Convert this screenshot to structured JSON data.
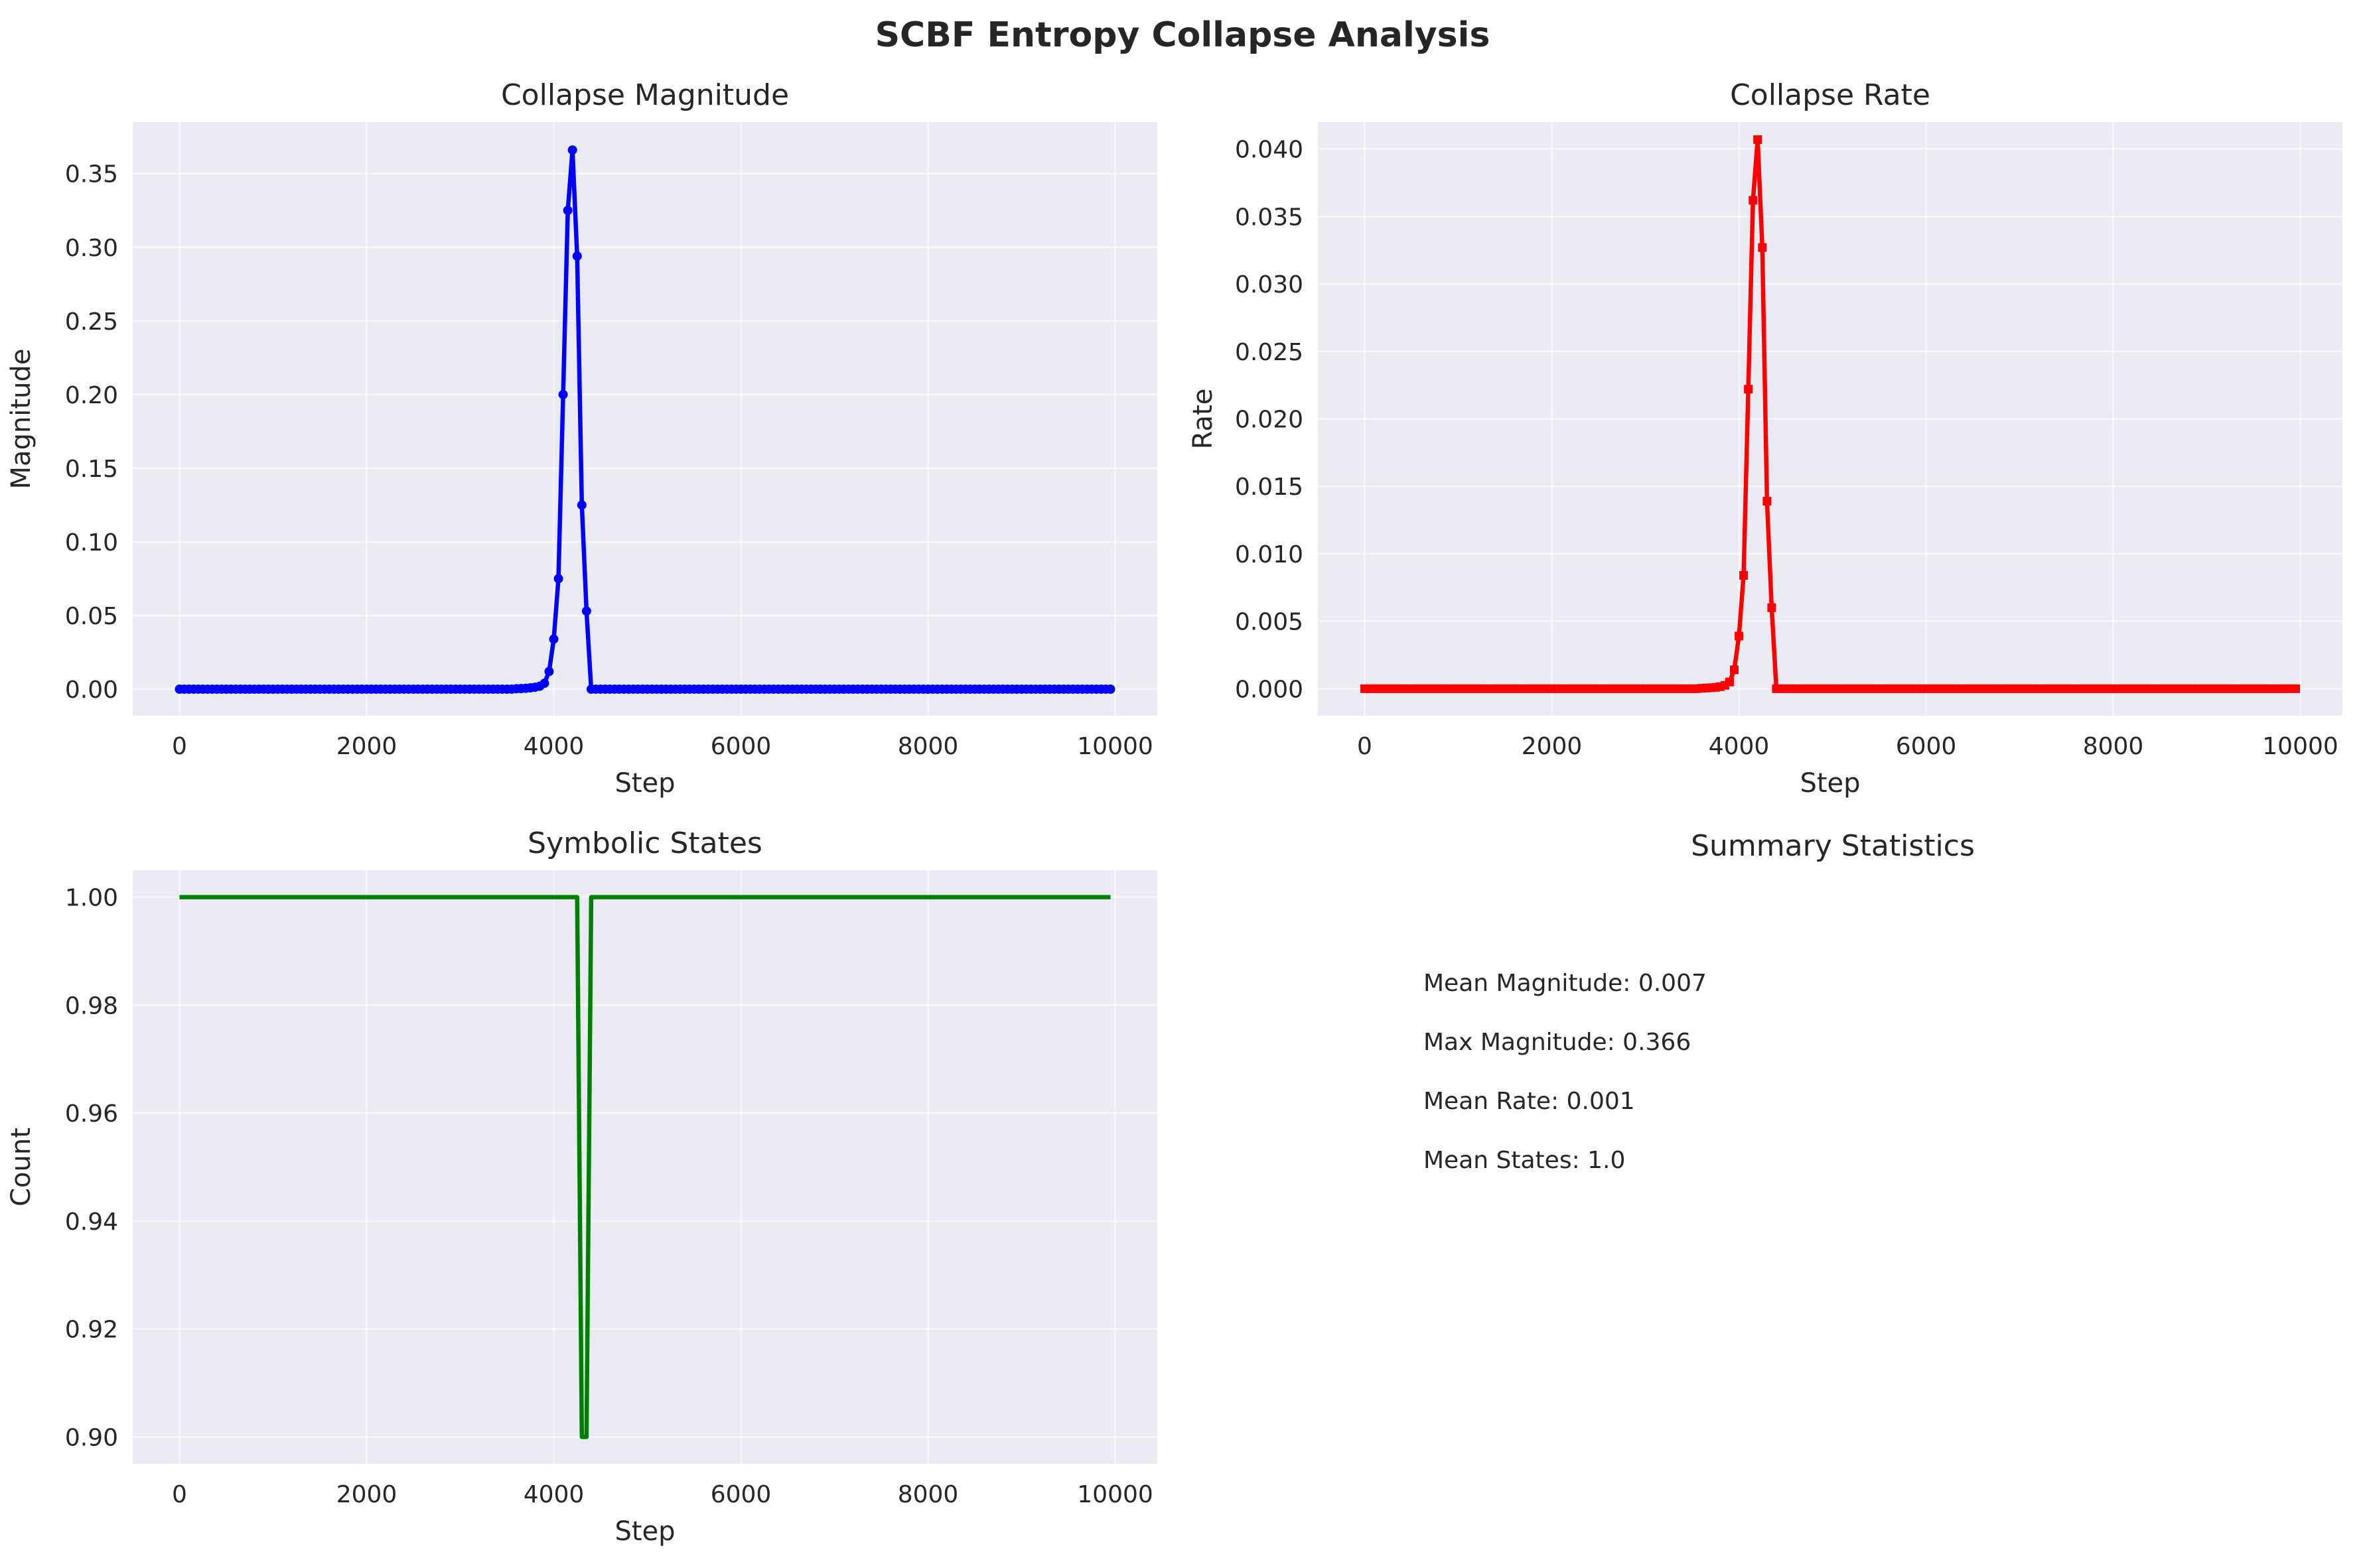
{
  "figure_title": "SCBF Entropy Collapse Analysis",
  "colors": {
    "panel_background": "#eaeaf2",
    "magnitude": "#0000ff",
    "rate": "#ff0000",
    "states": "#008000"
  },
  "chart_data": [
    {
      "id": "magnitude",
      "type": "line",
      "title": "Collapse Magnitude",
      "xlabel": "Step",
      "ylabel": "Magnitude",
      "xlim": [
        -500,
        10450
      ],
      "ylim": [
        -0.018,
        0.385
      ],
      "xticks": [
        0,
        2000,
        4000,
        6000,
        8000,
        10000
      ],
      "xtick_labels": [
        "0",
        "2000",
        "4000",
        "6000",
        "8000",
        "10000"
      ],
      "yticks": [
        0,
        0.05,
        0.1,
        0.15,
        0.2,
        0.25,
        0.3,
        0.35
      ],
      "ytick_labels": [
        "0.00",
        "0.05",
        "0.10",
        "0.15",
        "0.20",
        "0.25",
        "0.30",
        "0.35"
      ],
      "grid": true,
      "marker": "circle",
      "color": "#0000ff",
      "x_range": [
        0,
        9950
      ],
      "x_step": 50,
      "baseline": 0,
      "points": [
        [
          3600,
          0.0003
        ],
        [
          3650,
          0.0004
        ],
        [
          3700,
          0.0006
        ],
        [
          3750,
          0.0009
        ],
        [
          3800,
          0.0013
        ],
        [
          3850,
          0.002
        ],
        [
          3900,
          0.004
        ],
        [
          3950,
          0.012
        ],
        [
          4000,
          0.034
        ],
        [
          4050,
          0.075
        ],
        [
          4100,
          0.2
        ],
        [
          4150,
          0.325
        ],
        [
          4200,
          0.366
        ],
        [
          4250,
          0.294
        ],
        [
          4300,
          0.125
        ],
        [
          4350,
          0.053
        ],
        [
          4400,
          0.0
        ]
      ]
    },
    {
      "id": "rate",
      "type": "line",
      "title": "Collapse Rate",
      "xlabel": "Step",
      "ylabel": "Rate",
      "xlim": [
        -500,
        10450
      ],
      "ylim": [
        -0.002,
        0.042
      ],
      "xticks": [
        0,
        2000,
        4000,
        6000,
        8000,
        10000
      ],
      "xtick_labels": [
        "0",
        "2000",
        "4000",
        "6000",
        "8000",
        "10000"
      ],
      "yticks": [
        0,
        0.005,
        0.01,
        0.015,
        0.02,
        0.025,
        0.03,
        0.035,
        0.04
      ],
      "ytick_labels": [
        "0.000",
        "0.005",
        "0.010",
        "0.015",
        "0.020",
        "0.025",
        "0.030",
        "0.035",
        "0.040"
      ],
      "grid": true,
      "marker": "square",
      "color": "#ff0000",
      "x_range": [
        0,
        9950
      ],
      "x_step": 50,
      "baseline": 0,
      "points": [
        [
          3600,
          3e-05
        ],
        [
          3650,
          5e-05
        ],
        [
          3700,
          7e-05
        ],
        [
          3750,
          0.0001
        ],
        [
          3800,
          0.00015
        ],
        [
          3850,
          0.00025
        ],
        [
          3900,
          0.0005
        ],
        [
          3950,
          0.0014
        ],
        [
          4000,
          0.0039
        ],
        [
          4050,
          0.0084
        ],
        [
          4100,
          0.0222
        ],
        [
          4150,
          0.0362
        ],
        [
          4200,
          0.0407
        ],
        [
          4250,
          0.0327
        ],
        [
          4300,
          0.0139
        ],
        [
          4350,
          0.006
        ],
        [
          4400,
          0.0
        ]
      ]
    },
    {
      "id": "states",
      "type": "line",
      "title": "Symbolic States",
      "xlabel": "Step",
      "ylabel": "Count",
      "xlim": [
        -500,
        10450
      ],
      "ylim": [
        0.895,
        1.005
      ],
      "xticks": [
        0,
        2000,
        4000,
        6000,
        8000,
        10000
      ],
      "xtick_labels": [
        "0",
        "2000",
        "4000",
        "6000",
        "8000",
        "10000"
      ],
      "yticks": [
        0.9,
        0.92,
        0.94,
        0.96,
        0.98,
        1.0
      ],
      "ytick_labels": [
        "0.90",
        "0.92",
        "0.94",
        "0.96",
        "0.98",
        "1.00"
      ],
      "grid": true,
      "marker": "none",
      "color": "#008000",
      "x": [
        0,
        4250,
        4300,
        4350,
        4400,
        9950
      ],
      "y": [
        1.0,
        1.0,
        0.9,
        0.9,
        1.0,
        1.0
      ]
    }
  ],
  "summary": {
    "title": "Summary Statistics",
    "lines": [
      "Mean Magnitude: 0.007",
      "Max Magnitude: 0.366",
      "Mean Rate: 0.001",
      "Mean States: 1.0"
    ]
  }
}
